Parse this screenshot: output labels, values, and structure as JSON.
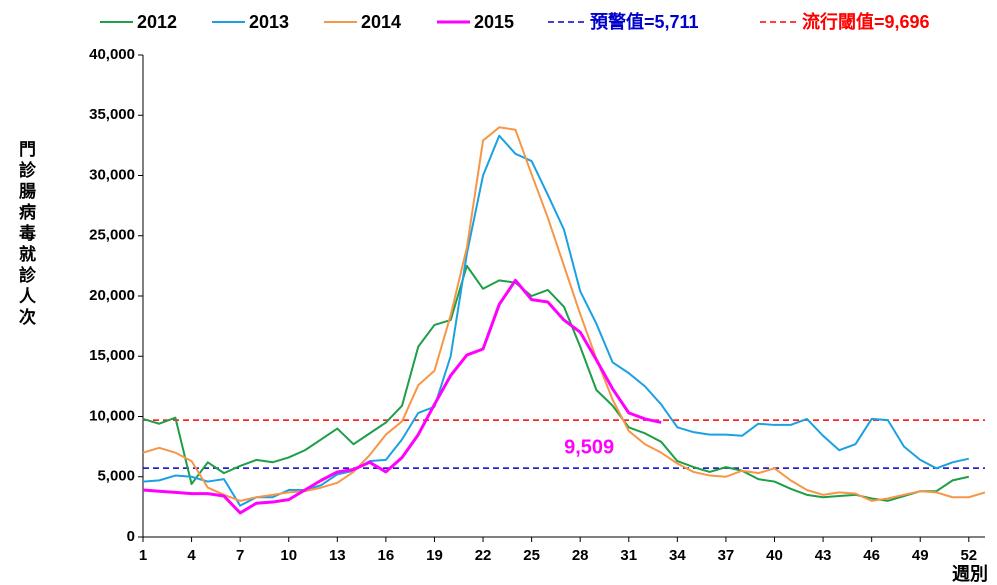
{
  "chart_data": {
    "type": "line",
    "y_label": "門診腸病毒就診人次",
    "x_label": "週別",
    "x": [
      1,
      2,
      3,
      4,
      5,
      6,
      7,
      8,
      9,
      10,
      11,
      12,
      13,
      14,
      15,
      16,
      17,
      18,
      19,
      20,
      21,
      22,
      23,
      24,
      25,
      26,
      27,
      28,
      29,
      30,
      31,
      32,
      33,
      34,
      35,
      36,
      37,
      38,
      39,
      40,
      41,
      42,
      43,
      44,
      45,
      46,
      47,
      48,
      49,
      50,
      51,
      52,
      53
    ],
    "xlim": [
      1,
      53
    ],
    "xticks": [
      1,
      4,
      7,
      10,
      13,
      16,
      19,
      22,
      25,
      28,
      31,
      34,
      37,
      40,
      43,
      46,
      49,
      52
    ],
    "ylim": [
      0,
      40000
    ],
    "yticks": [
      0,
      {
        "value": 5000,
        "label": "5,000"
      },
      {
        "value": 10000,
        "label": "10,000"
      },
      {
        "value": 15000,
        "label": "15,000"
      },
      {
        "value": 20000,
        "label": "20,000"
      },
      {
        "value": 25000,
        "label": "25,000"
      },
      {
        "value": 30000,
        "label": "30,000"
      },
      {
        "value": 35000,
        "label": "35,000"
      },
      {
        "value": 40000,
        "label": "40,000"
      }
    ],
    "series": [
      {
        "name": "2012",
        "color": "#1e9e46",
        "width": 2,
        "values": [
          9800,
          9400,
          9900,
          4400,
          6200,
          5300,
          5900,
          6400,
          6200,
          6600,
          7200,
          8100,
          9000,
          7700,
          8600,
          9500,
          10900,
          15800,
          17600,
          18000,
          22500,
          20600,
          21300,
          21100,
          20000,
          20500,
          19100,
          15800,
          12200,
          10900,
          9100,
          8600,
          7900,
          6300,
          5800,
          5400,
          5800,
          5500,
          4800,
          4600,
          4000,
          3500,
          3300,
          3400,
          3500,
          3200,
          3000,
          3400,
          3800,
          3800,
          4700,
          5000,
          null
        ]
      },
      {
        "name": "2013",
        "color": "#1ba1e2",
        "width": 2,
        "values": [
          4600,
          4700,
          5100,
          5000,
          4600,
          4800,
          2600,
          3300,
          3300,
          3900,
          3900,
          4300,
          5200,
          5500,
          6300,
          6400,
          8100,
          10300,
          10800,
          15000,
          23500,
          30000,
          33300,
          31800,
          31200,
          28400,
          25500,
          20400,
          17700,
          14500,
          13600,
          12500,
          11000,
          9100,
          8700,
          8500,
          8500,
          8400,
          9400,
          9300,
          9300,
          9800,
          8400,
          7200,
          7700,
          9800,
          9700,
          7500,
          6400,
          5700,
          6200,
          6500,
          null
        ]
      },
      {
        "name": "2014",
        "color": "#f79646",
        "width": 2,
        "values": [
          7000,
          7400,
          7000,
          6300,
          4100,
          3500,
          3000,
          3300,
          3500,
          3700,
          3800,
          4100,
          4500,
          5400,
          6800,
          8500,
          9600,
          12600,
          13800,
          18400,
          24000,
          32900,
          34000,
          33800,
          30100,
          26500,
          22500,
          18500,
          14800,
          11400,
          8800,
          7700,
          7000,
          6100,
          5400,
          5100,
          5000,
          5500,
          5300,
          5700,
          4700,
          3900,
          3500,
          3700,
          3600,
          3000,
          3200,
          3500,
          3800,
          3700,
          3300,
          3300,
          3700
        ]
      },
      {
        "name": "2015",
        "color": "#ff00ff",
        "width": 3,
        "values": [
          3900,
          3800,
          3700,
          3600,
          3600,
          3400,
          2000,
          2800,
          2900,
          3100,
          3900,
          4700,
          5400,
          5600,
          6200,
          5400,
          6600,
          8500,
          11000,
          13400,
          15100,
          15600,
          19300,
          21300,
          19700,
          19500,
          18000,
          17000,
          14700,
          12300,
          10300,
          9800,
          9509,
          null,
          null,
          null,
          null,
          null,
          null,
          null,
          null,
          null,
          null,
          null,
          null,
          null,
          null,
          null,
          null,
          null,
          null,
          null,
          null
        ],
        "value_labels": [
          null,
          null,
          null,
          null,
          null,
          null,
          null,
          null,
          null,
          null,
          null,
          null,
          null,
          null,
          null,
          null,
          null,
          null,
          null,
          null,
          null,
          null,
          null,
          null,
          null,
          null,
          null,
          null,
          null,
          null,
          null,
          null,
          "9,509",
          null,
          null,
          null,
          null,
          null,
          null,
          null,
          null,
          null,
          null,
          null,
          null,
          null,
          null,
          null,
          null,
          null,
          null,
          null,
          null
        ]
      }
    ],
    "hlines": [
      {
        "name": "預警值=5,711",
        "value": 5711,
        "color": "#0000cc"
      },
      {
        "name": "流行閾值=9,696",
        "value": 9696,
        "color": "#ff0000"
      }
    ]
  }
}
